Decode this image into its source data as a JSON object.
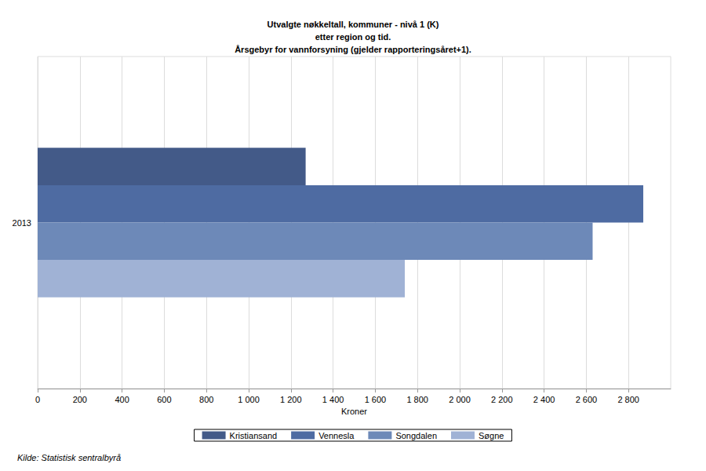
{
  "chart_data": {
    "type": "bar",
    "title": "Utvalgte nøkkeltall, kommuner - nivå 1 (K)\netter region og tid.\nÅrsgebyr for vannforsyning (gjelder rapporteringsåret+1).",
    "x_label": "Kroner",
    "source": "Kilde: Statistisk sentralbyrå",
    "orientation": "horizontal",
    "categories": [
      "2013"
    ],
    "series": [
      {
        "name": "Kristiansand",
        "color": "#435a88",
        "values": [
          1270
        ]
      },
      {
        "name": "Vennesla",
        "color": "#4e6ba2",
        "values": [
          2870
        ]
      },
      {
        "name": "Songdalen",
        "color": "#6d89b8",
        "values": [
          2630
        ]
      },
      {
        "name": "Søgne",
        "color": "#a0b2d5",
        "values": [
          1740
        ]
      }
    ],
    "xlim": [
      0,
      3000
    ],
    "xticks": [
      0,
      200,
      400,
      600,
      800,
      {
        "value": 1000,
        "label": "1 000"
      },
      {
        "value": 1200,
        "label": "1 200"
      },
      {
        "value": 1400,
        "label": "1 400"
      },
      {
        "value": 1600,
        "label": "1 600"
      },
      {
        "value": 1800,
        "label": "1 800"
      },
      {
        "value": 2000,
        "label": "2 000"
      },
      {
        "value": 2200,
        "label": "2 200"
      },
      {
        "value": 2400,
        "label": "2 400"
      },
      {
        "value": 2600,
        "label": "2 600"
      },
      {
        "value": 2800,
        "label": "2 800"
      }
    ],
    "grid": true,
    "legend": "bottom"
  }
}
